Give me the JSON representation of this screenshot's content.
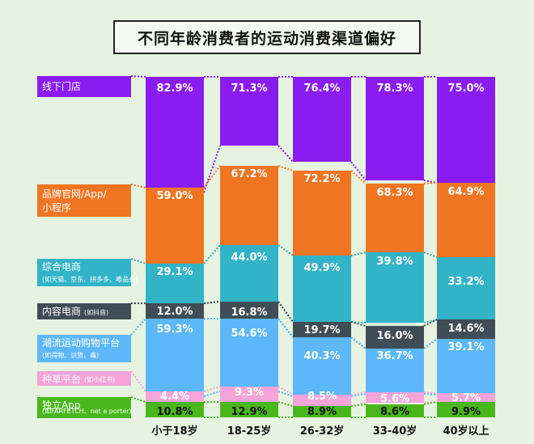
{
  "chart_data": {
    "type": "bar",
    "stacked": true,
    "overlapping_bands": true,
    "title": "不同年龄消费者的运动消费渠道偏好",
    "categories": [
      "小于18岁",
      "18-25岁",
      "26-32岁",
      "33-40岁",
      "40岁以上"
    ],
    "series": [
      {
        "name": "线下门店",
        "sub": "",
        "color": "#8a1cf0",
        "label_color": "#ffffff",
        "values": [
          82.9,
          71.3,
          76.4,
          78.3,
          75.0
        ]
      },
      {
        "name": "品牌官网/App/",
        "name2": "小程序",
        "sub": "",
        "color": "#f07522",
        "label_color": "#ffffff",
        "values": [
          59.0,
          67.2,
          72.2,
          68.3,
          64.9
        ]
      },
      {
        "name": "综合电商",
        "sub": "(如天猫、京东、拼多多、唯品会)",
        "color": "#33b3c7",
        "label_color": "#ffffff",
        "values": [
          29.1,
          44.0,
          49.9,
          39.8,
          33.2
        ]
      },
      {
        "name": "内容电商",
        "sub": "(如抖音)",
        "color": "#3f4d56",
        "label_color": "#ffffff",
        "values": [
          12.0,
          16.8,
          19.7,
          16.0,
          14.6
        ]
      },
      {
        "name": "潮流运动购物平台",
        "sub": "(如得物、识货、毒)",
        "color": "#5cb8f8",
        "label_color": "#ffffff",
        "values": [
          59.3,
          54.6,
          40.3,
          36.7,
          39.1
        ]
      },
      {
        "name": "种草平台",
        "sub": "(如小红书)",
        "color": "#f4a4d9",
        "label_color": "#ffffff",
        "values": [
          4.4,
          9.3,
          8.5,
          5.6,
          5.7
        ]
      },
      {
        "name": "独立App",
        "sub": "(如FARFETCH、net a porter)",
        "color": "#49b71c",
        "label_color": "#111111",
        "values": [
          10.8,
          12.9,
          8.9,
          8.6,
          9.9
        ]
      }
    ],
    "legend_placement": "left",
    "grid": false
  }
}
